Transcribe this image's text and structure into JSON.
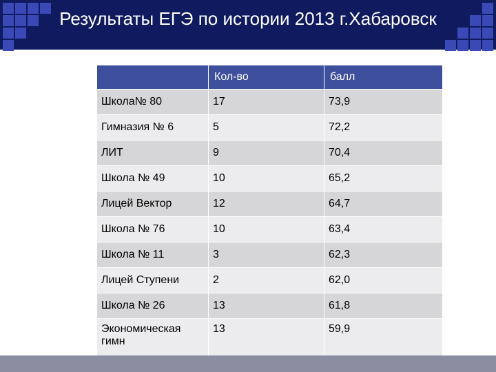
{
  "slide": {
    "title": "Результаты ЕГЭ по истории 2013 г.Хабаровск",
    "colors": {
      "header": "#0f1b5e",
      "table_header": "#3e4f9e",
      "row_odd": "#d6d6d8",
      "row_even": "#ececee",
      "footer": "#8a8ea0",
      "deco_square": "#3a49b5"
    }
  },
  "table": {
    "headers": [
      "",
      "Кол-во",
      "балл"
    ],
    "rows": [
      [
        "Школа№ 80",
        "17",
        "73,9"
      ],
      [
        "Гимназия  № 6",
        "5",
        "72,2"
      ],
      [
        "ЛИТ",
        "9",
        "70,4"
      ],
      [
        "Школа № 49",
        "10",
        "65,2"
      ],
      [
        "Лицей Вектор",
        "12",
        "64,7"
      ],
      [
        "Школа № 76",
        "10",
        "63,4"
      ],
      [
        "Школа № 11",
        "3",
        "62,3"
      ],
      [
        "Лицей Ступени",
        "2",
        "62,0"
      ],
      [
        "Школа № 26",
        "13",
        "61,8"
      ],
      [
        "Экономическая гимн",
        "13",
        "59,9"
      ]
    ]
  }
}
